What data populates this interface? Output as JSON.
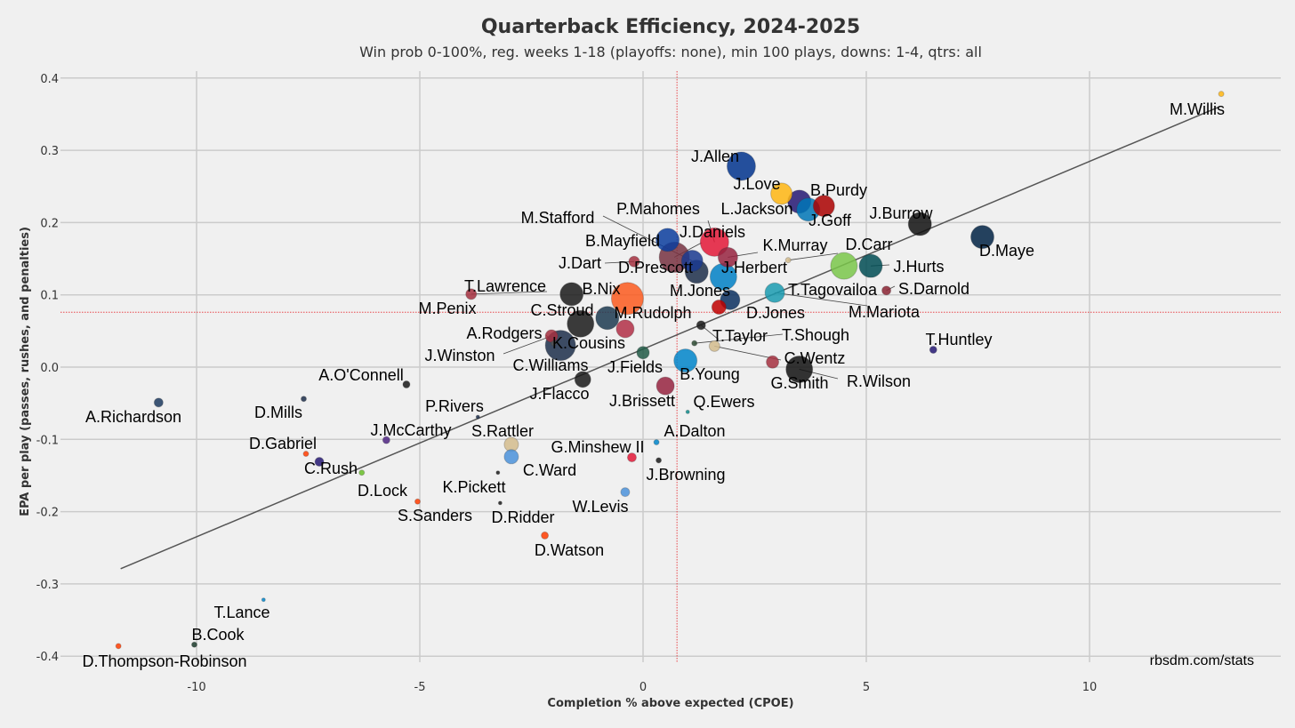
{
  "chart_data": {
    "type": "scatter",
    "title": "Quarterback Efficiency, 2024-2025",
    "subtitle": "Win prob 0-100%, reg. weeks 1-18 (playoffs: none), min 100 plays, downs: 1-4, qtrs: all",
    "xlabel": "Completion % above expected (CPOE)",
    "ylabel": "EPA per play (passes, rushes, and penalties)",
    "xlim": [
      -13,
      14.5
    ],
    "ylim": [
      -0.42,
      0.43
    ],
    "xticks": [
      -10,
      -5,
      0,
      5,
      10
    ],
    "yticks": [
      -0.4,
      -0.3,
      -0.2,
      -0.1,
      0.0,
      0.1,
      0.2,
      0.3,
      0.4
    ],
    "xtick_labels": [
      "-10",
      "-5",
      "0",
      "5",
      "10"
    ],
    "ytick_labels": [
      "-0.4",
      "-0.3",
      "-0.2",
      "-0.1",
      "0.0",
      "0.1",
      "0.2",
      "0.3",
      "0.4"
    ],
    "avg_x": 0.76,
    "avg_y": 0.076,
    "trendline": {
      "x": [
        -11.7,
        12.9
      ],
      "y": [
        -0.279,
        0.36
      ]
    },
    "source": "rbsdm.com/stats",
    "grid": true,
    "points": [
      {
        "name": "M.Willis",
        "x": 12.95,
        "y": 0.378,
        "size": 3,
        "color": "#FFB612",
        "label": "M.Willis"
      },
      {
        "name": "J.Allen",
        "x": 2.2,
        "y": 0.278,
        "size": 16,
        "color": "#00338D",
        "label": "J.Allen"
      },
      {
        "name": "J.Love",
        "x": 3.1,
        "y": 0.24,
        "size": 12,
        "color": "#FFB612",
        "label": "J.Love"
      },
      {
        "name": "B.Purdy",
        "x": 4.05,
        "y": 0.223,
        "size": 12,
        "color": "#AA0000",
        "label": "B.Purdy"
      },
      {
        "name": "L.Jackson",
        "x": 3.5,
        "y": 0.229,
        "size": 13,
        "color": "#241773",
        "label": "L.Jackson"
      },
      {
        "name": "J.Goff",
        "x": 3.7,
        "y": 0.218,
        "size": 13,
        "color": "#0076B6",
        "label": "J.Goff"
      },
      {
        "name": "J.Burrow",
        "x": 6.2,
        "y": 0.198,
        "size": 13,
        "color": "#111111",
        "label": "J.Burrow"
      },
      {
        "name": "D.Maye",
        "x": 7.6,
        "y": 0.18,
        "size": 13,
        "color": "#002244",
        "label": "D.Maye"
      },
      {
        "name": "P.Mahomes",
        "x": 1.6,
        "y": 0.173,
        "size": 16,
        "color": "#E31837",
        "label": "P.Mahomes"
      },
      {
        "name": "J.Daniels",
        "x": 0.7,
        "y": 0.152,
        "size": 17,
        "color": "#773141",
        "label": "J.Daniels"
      },
      {
        "name": "B.Mayfield",
        "x": 0.55,
        "y": 0.176,
        "size": 13,
        "color": "#0A3D9E",
        "label": "B.Mayfield"
      },
      {
        "name": "M.Stafford",
        "x": 1.1,
        "y": 0.147,
        "size": 12,
        "color": "#1A3A8F",
        "label": "M.Stafford"
      },
      {
        "name": "K.Murray",
        "x": 1.9,
        "y": 0.152,
        "size": 11,
        "color": "#97233F",
        "label": "K.Murray"
      },
      {
        "name": "D.Carr",
        "x": 3.25,
        "y": 0.148,
        "size": 3,
        "color": "#D3BC8D",
        "label": "D.Carr"
      },
      {
        "name": "J.Hurts",
        "x": 5.1,
        "y": 0.14,
        "size": 13,
        "color": "#004C54",
        "label": "J.Hurts"
      },
      {
        "name": "T.Tagovailoa",
        "x": 4.5,
        "y": 0.14,
        "size": 15,
        "color": "#7AC74A",
        "label": "T.Tagovailoa"
      },
      {
        "name": "S.Darnold",
        "x": 5.45,
        "y": 0.106,
        "size": 5,
        "color": "#8B2332",
        "label": "S.Darnold"
      },
      {
        "name": "J.Dart",
        "x": -0.2,
        "y": 0.146,
        "size": 6,
        "color": "#A5303F",
        "label": "J.Dart"
      },
      {
        "name": "D.Prescott",
        "x": 1.2,
        "y": 0.132,
        "size": 13,
        "color": "#1C2E4A",
        "label": "D.Prescott"
      },
      {
        "name": "J.Herbert",
        "x": 1.8,
        "y": 0.125,
        "size": 15,
        "color": "#0080C6",
        "label": "J.Herbert"
      },
      {
        "name": "M.Jones",
        "x": 1.95,
        "y": 0.093,
        "size": 11,
        "color": "#0B2F5F",
        "label": "M.Jones"
      },
      {
        "name": "D.Jones",
        "x": 1.7,
        "y": 0.083,
        "size": 8,
        "color": "#C00000",
        "label": "D.Jones"
      },
      {
        "name": "M.Mariota",
        "x": 2.95,
        "y": 0.103,
        "size": 11,
        "color": "#1A9BB0",
        "label": "M.Mariota"
      },
      {
        "name": "T.Lawrence",
        "x": -3.85,
        "y": 0.101,
        "size": 6,
        "color": "#A5303F",
        "label": "T.Lawrence"
      },
      {
        "name": "M.Penix",
        "x": -1.6,
        "y": 0.101,
        "size": 13,
        "color": "#1A1A1A",
        "label": "M.Penix"
      },
      {
        "name": "B.Nix",
        "x": -0.35,
        "y": 0.095,
        "size": 18,
        "color": "#FB5B1E",
        "label": "B.Nix"
      },
      {
        "name": "M.Rudolph",
        "x": -0.8,
        "y": 0.068,
        "size": 13,
        "color": "#1C3A50",
        "label": "M.Rudolph"
      },
      {
        "name": "C.Stroud",
        "x": -1.4,
        "y": 0.06,
        "size": 15,
        "color": "#1A1A1A",
        "label": "C.Stroud"
      },
      {
        "name": "A.Rodgers",
        "x": -2.0,
        "y": 0.033,
        "size": 3,
        "color": "#555555",
        "label": "A.Rodgers"
      },
      {
        "name": "K.Cousins",
        "x": -1.85,
        "y": 0.03,
        "size": 17,
        "color": "#1C2E4A",
        "label": "K.Cousins"
      },
      {
        "name": "J.Winston",
        "x": -2.05,
        "y": 0.043,
        "size": 7,
        "color": "#A5303F",
        "label": "J.Winston"
      },
      {
        "name": "C.Williams",
        "x": -0.4,
        "y": 0.053,
        "size": 10,
        "color": "#B12F46",
        "label": "C.Williams"
      },
      {
        "name": "J.Fields",
        "x": 0.0,
        "y": 0.02,
        "size": 7,
        "color": "#215A47",
        "label": "J.Fields"
      },
      {
        "name": "T.Taylor",
        "x": 1.3,
        "y": 0.058,
        "size": 5,
        "color": "#1A1A1A",
        "label": "T.Taylor"
      },
      {
        "name": "T.Shough",
        "x": 1.15,
        "y": 0.033,
        "size": 3,
        "color": "#2D4A33",
        "label": "T.Shough"
      },
      {
        "name": "C.Wentz",
        "x": 1.6,
        "y": 0.029,
        "size": 6,
        "color": "#D3BC8D",
        "label": "C.Wentz"
      },
      {
        "name": "B.Young",
        "x": 0.95,
        "y": 0.009,
        "size": 13,
        "color": "#0085CA",
        "label": "B.Young"
      },
      {
        "name": "G.Smith",
        "x": 2.9,
        "y": 0.007,
        "size": 7,
        "color": "#A5303F",
        "label": "G.Smith"
      },
      {
        "name": "R.Wilson",
        "x": 3.5,
        "y": -0.003,
        "size": 15,
        "color": "#111111",
        "label": "R.Wilson"
      },
      {
        "name": "T.Huntley",
        "x": 6.5,
        "y": 0.024,
        "size": 4,
        "color": "#241773",
        "label": "T.Huntley"
      },
      {
        "name": "J.Flacco",
        "x": -1.35,
        "y": -0.017,
        "size": 9,
        "color": "#1A1A1A",
        "label": "J.Flacco"
      },
      {
        "name": "J.Brissett",
        "x": 0.5,
        "y": -0.026,
        "size": 10,
        "color": "#97233F",
        "label": "J.Brissett"
      },
      {
        "name": "Q.Ewers",
        "x": 1.0,
        "y": -0.062,
        "size": 2,
        "color": "#0A8C8C",
        "label": "Q.Ewers"
      },
      {
        "name": "A.O'Connell",
        "x": -5.3,
        "y": -0.024,
        "size": 4,
        "color": "#1A1A1A",
        "label": "A.O'Connell"
      },
      {
        "name": "A.Richardson",
        "x": -10.85,
        "y": -0.049,
        "size": 5,
        "color": "#1C3A5F",
        "label": "A.Richardson"
      },
      {
        "name": "D.Mills",
        "x": -7.6,
        "y": -0.044,
        "size": 3,
        "color": "#1C2E4A",
        "label": "D.Mills"
      },
      {
        "name": "P.Rivers",
        "x": -3.7,
        "y": -0.069,
        "size": 2,
        "color": "#1C2E4A",
        "label": "P.Rivers"
      },
      {
        "name": "J.McCarthy",
        "x": -5.75,
        "y": -0.101,
        "size": 4,
        "color": "#4F2683",
        "label": "J.McCarthy"
      },
      {
        "name": "S.Rattler",
        "x": -2.95,
        "y": -0.107,
        "size": 8,
        "color": "#D3BC8D",
        "label": "S.Rattler"
      },
      {
        "name": "C.Ward",
        "x": -2.95,
        "y": -0.124,
        "size": 8,
        "color": "#4B92DB",
        "label": "C.Ward"
      },
      {
        "name": "A.Dalton",
        "x": 0.3,
        "y": -0.104,
        "size": 3,
        "color": "#0085CA",
        "label": "A.Dalton"
      },
      {
        "name": "G.Minshew II",
        "x": -0.25,
        "y": -0.125,
        "size": 5,
        "color": "#E31837",
        "label": "G.Minshew II"
      },
      {
        "name": "J.Browning",
        "x": 0.35,
        "y": -0.129,
        "size": 3,
        "color": "#1A1A1A",
        "label": "J.Browning"
      },
      {
        "name": "D.Gabriel",
        "x": -7.55,
        "y": -0.12,
        "size": 3,
        "color": "#FF3C00",
        "label": "D.Gabriel"
      },
      {
        "name": "C.Rush",
        "x": -7.25,
        "y": -0.131,
        "size": 5,
        "color": "#241773",
        "label": "C.Rush"
      },
      {
        "name": "D.Lock",
        "x": -6.3,
        "y": -0.146,
        "size": 3,
        "color": "#69BE28",
        "label": "D.Lock"
      },
      {
        "name": "K.Pickett",
        "x": -3.25,
        "y": -0.146,
        "size": 2,
        "color": "#1A1A1A",
        "label": "K.Pickett"
      },
      {
        "name": "S.Sanders",
        "x": -5.05,
        "y": -0.186,
        "size": 3,
        "color": "#FF3C00",
        "label": "S.Sanders"
      },
      {
        "name": "D.Ridder",
        "x": -3.2,
        "y": -0.188,
        "size": 2,
        "color": "#1A1A1A",
        "label": "D.Ridder"
      },
      {
        "name": "W.Levis",
        "x": -0.4,
        "y": -0.173,
        "size": 5,
        "color": "#4B92DB",
        "label": "W.Levis"
      },
      {
        "name": "D.Watson",
        "x": -2.2,
        "y": -0.233,
        "size": 4,
        "color": "#FF3C00",
        "label": "D.Watson"
      },
      {
        "name": "T.Lance",
        "x": -8.5,
        "y": -0.322,
        "size": 2,
        "color": "#0085CA",
        "label": "T.Lance"
      },
      {
        "name": "B.Cook",
        "x": -10.05,
        "y": -0.384,
        "size": 3,
        "color": "#1A3A2A",
        "label": "B.Cook"
      },
      {
        "name": "D.Thompson-Robinson",
        "x": -11.75,
        "y": -0.386,
        "size": 3,
        "color": "#FF3C00",
        "label": "D.Thompson-Robinson"
      }
    ]
  }
}
